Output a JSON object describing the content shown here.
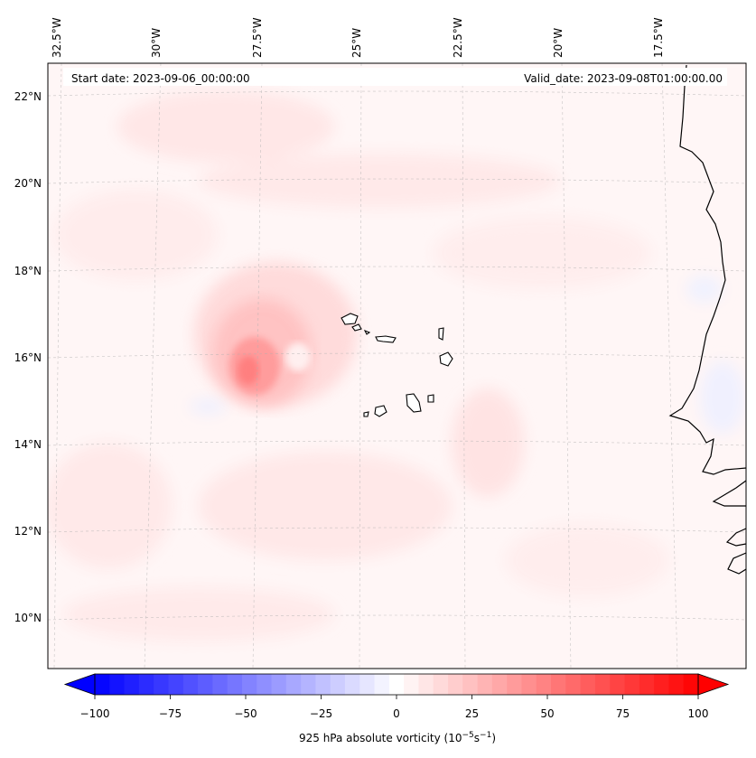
{
  "header": {
    "start_date": "Start date: 2023-09-06_00:00:00",
    "valid_date": "Valid_date: 2023-09-08T01:00:00.00"
  },
  "map": {
    "longitude_labels": [
      "32.5°W",
      "30°W",
      "27.5°W",
      "25°W",
      "22.5°W",
      "20°W",
      "17.5°W"
    ],
    "latitude_labels": [
      "22°N",
      "20°N",
      "18°N",
      "16°N",
      "14°N",
      "12°N",
      "10°N"
    ],
    "features": [
      "coastline-west-africa",
      "cape-verde-islands",
      "vorticity-maximum"
    ]
  },
  "colorbar": {
    "title_main": "925 hPa absolute vorticity (10",
    "title_exp1": "−5",
    "title_mid": "s",
    "title_exp2": "−1",
    "title_end": ")",
    "ticks": [
      "−100",
      "−75",
      "−50",
      "−25",
      "0",
      "25",
      "50",
      "75",
      "100"
    ],
    "range": [
      -100,
      100
    ],
    "n_levels": 41,
    "cmap": "bwr"
  },
  "colors": {
    "negative": "#0000ff",
    "neutral": "#ffffff",
    "positive": "#ff0000",
    "background_field": "#fff6f6",
    "coastline": "#000000"
  }
}
